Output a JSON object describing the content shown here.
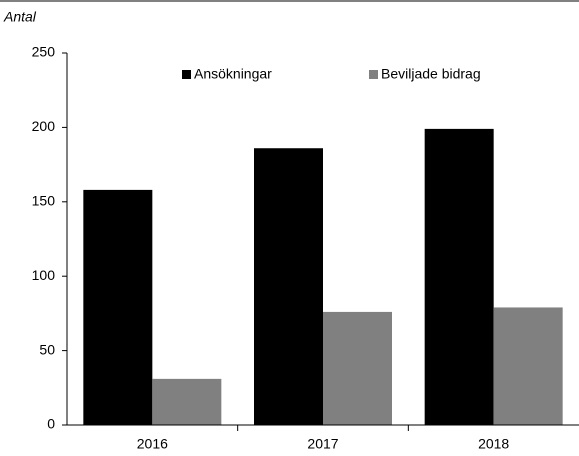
{
  "chart_data": {
    "type": "bar",
    "y_label": "Antal",
    "categories": [
      "2016",
      "2017",
      "2018"
    ],
    "series": [
      {
        "name": "Ansökningar",
        "color": "#000000",
        "values": [
          158,
          186,
          199
        ]
      },
      {
        "name": "Beviljade bidrag",
        "color": "#808080",
        "values": [
          31,
          76,
          79
        ]
      }
    ],
    "ylim": [
      0,
      250
    ],
    "yticks": [
      0,
      50,
      100,
      150,
      200,
      250
    ],
    "grid": false,
    "legend": "top"
  }
}
